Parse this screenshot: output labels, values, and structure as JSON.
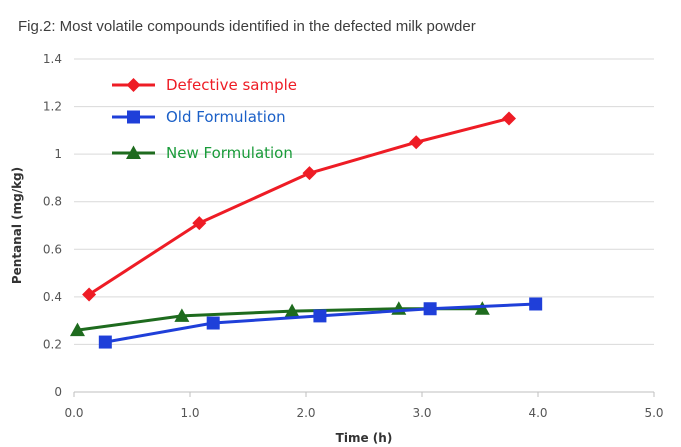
{
  "figure_title": "Fig.2: Most volatile compounds identified in the defected milk powder",
  "chart_data": {
    "type": "line",
    "title": "Fig.2: Most volatile compounds identified in the defected milk powder",
    "xlabel": "Time (h)",
    "ylabel": "Pentanal (mg/kg)",
    "xlim": [
      0,
      5
    ],
    "ylim": [
      0,
      1.4
    ],
    "x_ticks": [
      "0.0",
      "1.0",
      "2.0",
      "3.0",
      "4.0",
      "5.0"
    ],
    "y_ticks": [
      "0",
      "0.2",
      "0.4",
      "0.6",
      "0.8",
      "1",
      "1.2",
      "1.4"
    ],
    "grid": "horizontal",
    "legend_position": "top-left",
    "series": [
      {
        "name": "Defective sample",
        "color": "#ee1c25",
        "marker": "diamond",
        "points": [
          {
            "x": 0.13,
            "y": 0.41
          },
          {
            "x": 1.08,
            "y": 0.71
          },
          {
            "x": 2.03,
            "y": 0.92
          },
          {
            "x": 2.95,
            "y": 1.05
          },
          {
            "x": 3.75,
            "y": 1.15
          }
        ]
      },
      {
        "name": "Old Formulation",
        "color": "#1f3fd9",
        "marker": "square",
        "points": [
          {
            "x": 0.27,
            "y": 0.21
          },
          {
            "x": 1.2,
            "y": 0.29
          },
          {
            "x": 2.12,
            "y": 0.32
          },
          {
            "x": 3.07,
            "y": 0.35
          },
          {
            "x": 3.98,
            "y": 0.37
          }
        ]
      },
      {
        "name": "New Formulation",
        "color": "#1e6b1e",
        "marker": "triangle",
        "points": [
          {
            "x": 0.03,
            "y": 0.26
          },
          {
            "x": 0.93,
            "y": 0.32
          },
          {
            "x": 1.88,
            "y": 0.34
          },
          {
            "x": 2.8,
            "y": 0.35
          },
          {
            "x": 3.52,
            "y": 0.35
          }
        ]
      }
    ]
  },
  "legend_label_colors": {
    "Defective sample": "#ee1c25",
    "Old Formulation": "#1a5fc7",
    "New Formulation": "#1a9b3a"
  }
}
